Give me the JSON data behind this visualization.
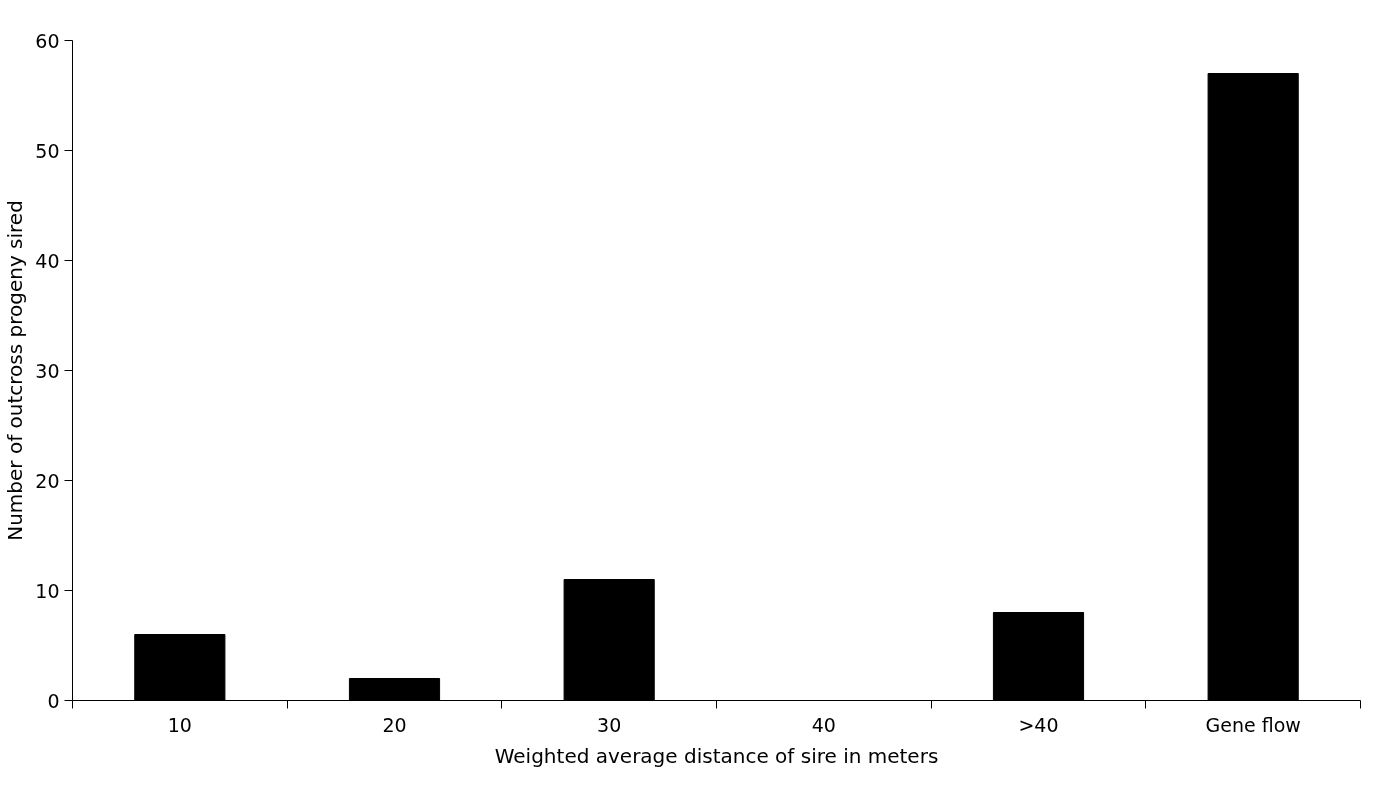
{
  "chart_data": {
    "type": "bar",
    "xlabel": "Weighted average distance of sire in meters",
    "ylabel": "Number of outcross progeny sired",
    "categories": [
      "10",
      "20",
      "30",
      "40",
      ">40",
      "Gene flow"
    ],
    "values": [
      6,
      2,
      11,
      0,
      8,
      57
    ],
    "color": "#000000",
    "ylim": [
      0,
      60
    ],
    "yticks": [
      0,
      10,
      20,
      30,
      40,
      50,
      60
    ],
    "grid": false
  }
}
